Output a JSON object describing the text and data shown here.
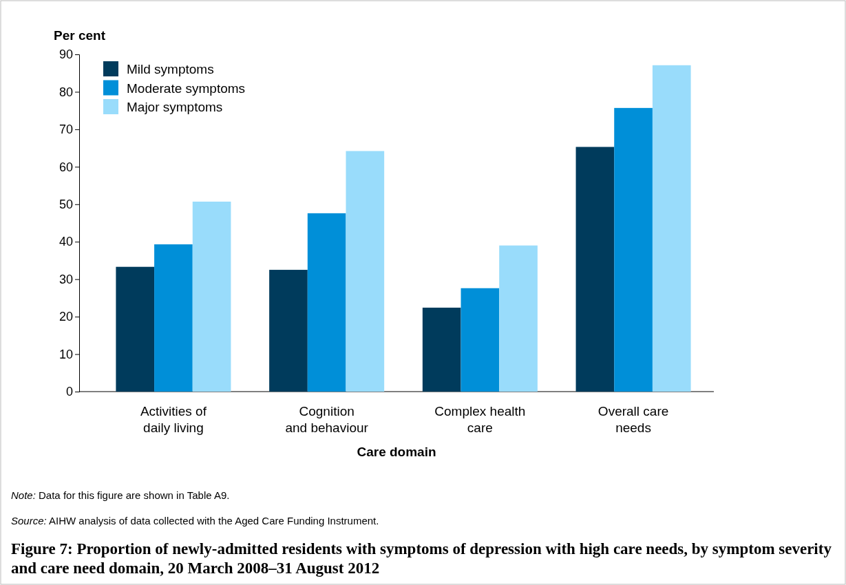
{
  "chart_data": {
    "type": "bar",
    "title": "Figure 7: Proportion of newly-admitted residents with symptoms of depression with high care needs, by symptom severity and care need domain, 20 March 2008–31 August 2012",
    "xlabel": "Care domain",
    "ylabel": "Per cent",
    "categories": [
      "Activities of\ndaily living",
      "Cognition\nand behaviour",
      "Complex health\ncare",
      "Overall care\nneeds"
    ],
    "series": [
      {
        "name": "Mild symptoms",
        "color": "#003b5c",
        "values": [
          33.3,
          32.5,
          22.4,
          65.3
        ]
      },
      {
        "name": "Moderate symptoms",
        "color": "#008fd8",
        "values": [
          39.3,
          47.6,
          27.6,
          75.7
        ]
      },
      {
        "name": "Major symptoms",
        "color": "#99dcfb",
        "values": [
          50.7,
          64.2,
          39.0,
          87.1
        ]
      }
    ],
    "ylim": [
      0,
      90
    ],
    "yticks": [
      0,
      10,
      20,
      30,
      40,
      50,
      60,
      70,
      80,
      90
    ],
    "grid": false,
    "legend": "top left",
    "annotations": [
      "Note: Data for this figure are shown in Table A9.",
      "Source: AIHW analysis of data collected with the Aged Care Funding Instrument."
    ]
  }
}
